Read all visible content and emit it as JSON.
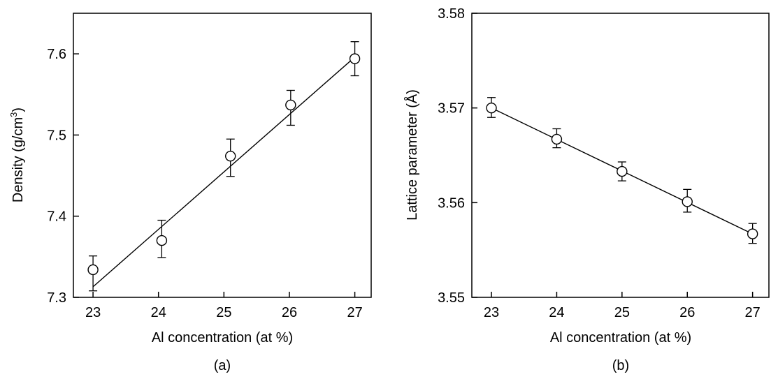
{
  "chart_data": [
    {
      "type": "scatter",
      "panel_label": "(a)",
      "xlabel": "Al concentration (at %)",
      "ylabel": "Density (g/cm",
      "ylabel_sup": "3",
      "ylabel_end": ")",
      "xlim": [
        22.7,
        27.25
      ],
      "ylim": [
        7.3,
        7.65
      ],
      "xticks": [
        23,
        24,
        25,
        26,
        27
      ],
      "xtick_labels": [
        "23",
        "24",
        "25",
        "26",
        "27"
      ],
      "yticks": [
        7.3,
        7.4,
        7.5,
        7.6
      ],
      "ytick_labels": [
        "7.3",
        "7.4",
        "7.5",
        "7.6"
      ],
      "grid": false,
      "legend": "none",
      "points": [
        {
          "x": 23.0,
          "y": 7.334,
          "err_low": 7.308,
          "err_high": 7.351
        },
        {
          "x": 24.05,
          "y": 7.37,
          "err_low": 7.349,
          "err_high": 7.395
        },
        {
          "x": 25.1,
          "y": 7.474,
          "err_low": 7.449,
          "err_high": 7.495
        },
        {
          "x": 26.02,
          "y": 7.537,
          "err_low": 7.512,
          "err_high": 7.555
        },
        {
          "x": 27.0,
          "y": 7.594,
          "err_low": 7.573,
          "err_high": 7.615
        }
      ],
      "fit_line": {
        "x": [
          23.0,
          27.0
        ],
        "y": [
          7.313,
          7.596
        ]
      }
    },
    {
      "type": "scatter",
      "panel_label": "(b)",
      "xlabel": "Al concentration (at %)",
      "ylabel": "Lattice parameter (Å)",
      "xlim": [
        22.7,
        27.25
      ],
      "ylim": [
        3.55,
        3.58
      ],
      "xticks": [
        23,
        24,
        25,
        26,
        27
      ],
      "xtick_labels": [
        "23",
        "24",
        "25",
        "26",
        "27"
      ],
      "yticks": [
        3.55,
        3.56,
        3.57,
        3.58
      ],
      "ytick_labels": [
        "3.55",
        "3.56",
        "3.57",
        "3.58"
      ],
      "grid": false,
      "legend": "none",
      "points": [
        {
          "x": 23.0,
          "y": 3.57,
          "err_low": 3.569,
          "err_high": 3.5711
        },
        {
          "x": 24.0,
          "y": 3.5667,
          "err_low": 3.5658,
          "err_high": 3.5678
        },
        {
          "x": 25.0,
          "y": 3.5633,
          "err_low": 3.5623,
          "err_high": 3.5643
        },
        {
          "x": 26.0,
          "y": 3.5601,
          "err_low": 3.559,
          "err_high": 3.5614
        },
        {
          "x": 27.0,
          "y": 3.5567,
          "err_low": 3.5557,
          "err_high": 3.5578
        }
      ],
      "fit_line": {
        "x": [
          23.0,
          27.0
        ],
        "y": [
          3.57,
          3.5567
        ]
      }
    }
  ]
}
